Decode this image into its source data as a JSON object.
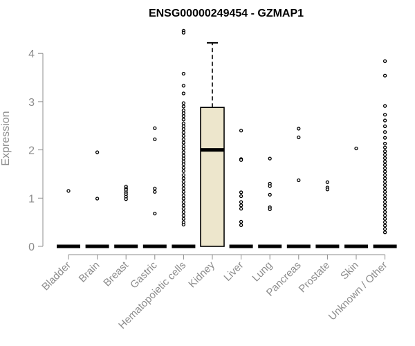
{
  "chart_data": {
    "type": "box",
    "title": "ENSG00000249454 - GZMAP1",
    "xlabel": "",
    "ylabel": "Expression",
    "ylim": [
      0,
      4.5
    ],
    "yticks": [
      0,
      1,
      2,
      3,
      4
    ],
    "categories": [
      "Bladder",
      "Brain",
      "Breast",
      "Gastric",
      "Hematopoietic cells",
      "Kidney",
      "Liver",
      "Lung",
      "Pancreas",
      "Prostate",
      "Skin",
      "Unknown / Other"
    ],
    "groups": [
      {
        "category": "Bladder",
        "median": 0,
        "q1": 0,
        "q3": 0,
        "outliers": [
          1.15
        ]
      },
      {
        "category": "Brain",
        "median": 0,
        "q1": 0,
        "q3": 0,
        "outliers": [
          1.95,
          0.99
        ]
      },
      {
        "category": "Breast",
        "median": 0,
        "q1": 0,
        "q3": 0,
        "outliers": [
          1.24,
          1.2,
          1.17,
          1.12,
          1.08,
          1.03,
          0.98
        ]
      },
      {
        "category": "Gastric",
        "median": 0,
        "q1": 0,
        "q3": 0,
        "outliers": [
          2.45,
          2.22,
          1.2,
          1.13,
          0.68
        ]
      },
      {
        "category": "Hematopoietic cells",
        "median": 0,
        "q1": 0,
        "q3": 0,
        "outliers": [
          4.47,
          4.43,
          3.58,
          3.33,
          3.17,
          2.97,
          2.9,
          2.82,
          2.76,
          2.7,
          2.63,
          2.55,
          2.49,
          2.43,
          2.36,
          2.29,
          2.22,
          2.15,
          2.08,
          2.02,
          1.95,
          1.88,
          1.82,
          1.76,
          1.7,
          1.63,
          1.56,
          1.48,
          1.41,
          1.34,
          1.27,
          1.2,
          1.13,
          1.06,
          0.99,
          0.92,
          0.85,
          0.78,
          0.71,
          0.64,
          0.57,
          0.5,
          0.45
        ]
      },
      {
        "category": "Kidney",
        "median": 2.0,
        "q1": 0,
        "q3": 2.88,
        "whisker_low": 0,
        "whisker_high": 4.22,
        "outliers": []
      },
      {
        "category": "Liver",
        "median": 0,
        "q1": 0,
        "q3": 0,
        "outliers": [
          2.4,
          1.81,
          1.79,
          1.12,
          1.04,
          0.92,
          0.85,
          0.78,
          0.51,
          0.44
        ]
      },
      {
        "category": "Lung",
        "median": 0,
        "q1": 0,
        "q3": 0,
        "outliers": [
          1.82,
          1.3,
          1.25,
          1.07,
          0.81,
          0.77
        ]
      },
      {
        "category": "Pancreas",
        "median": 0,
        "q1": 0,
        "q3": 0,
        "outliers": [
          2.44,
          2.26,
          1.37
        ]
      },
      {
        "category": "Prostate",
        "median": 0,
        "q1": 0,
        "q3": 0,
        "outliers": [
          1.33,
          1.22,
          1.18
        ]
      },
      {
        "category": "Skin",
        "median": 0,
        "q1": 0,
        "q3": 0,
        "outliers": [
          2.03
        ]
      },
      {
        "category": "Unknown / Other",
        "median": 0,
        "q1": 0,
        "q3": 0,
        "outliers": [
          3.84,
          3.54,
          2.91,
          2.73,
          2.61,
          2.49,
          2.37,
          2.25,
          2.13,
          2.05,
          1.97,
          1.9,
          1.83,
          1.76,
          1.69,
          1.62,
          1.55,
          1.48,
          1.41,
          1.34,
          1.27,
          1.2,
          1.13,
          1.06,
          0.99,
          0.92,
          0.85,
          0.78,
          0.71,
          0.64,
          0.57,
          0.5,
          0.43,
          0.36,
          0.29
        ]
      }
    ],
    "colors": {
      "box_fill": "#ede6cc",
      "stroke": "#000000",
      "axis": "#8c8c8c"
    },
    "grid": false,
    "legend": "none"
  }
}
